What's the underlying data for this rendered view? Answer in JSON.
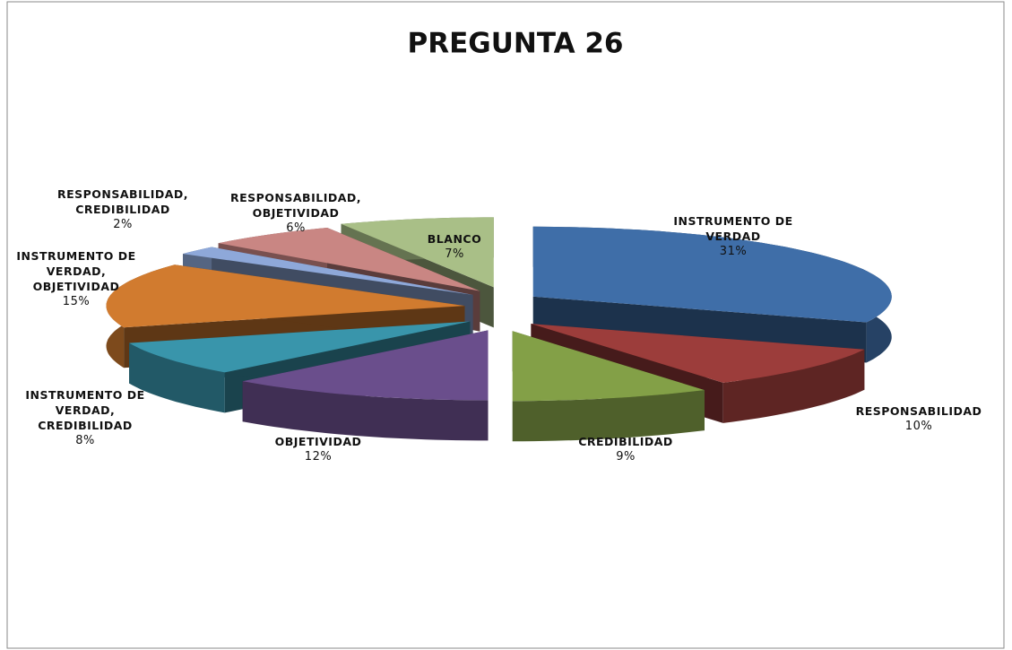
{
  "chart_data": {
    "type": "pie",
    "title": "PREGUNTA 26",
    "categories": [
      "INSTRUMENTO DE VERDAD",
      "RESPONSABILIDAD",
      "CREDIBILIDAD",
      "OBJETIVIDAD",
      "INSTRUMENTO DE VERDAD, CREDIBILIDAD",
      "INSTRUMENTO DE VERDAD, OBJETIVIDAD",
      "RESPONSABILIDAD, CREDIBILIDAD",
      "RESPONSABILIDAD, OBJETIVIDAD",
      "BLANCO"
    ],
    "values": [
      31,
      10,
      9,
      12,
      8,
      15,
      2,
      6,
      7
    ],
    "value_labels": [
      "31%",
      "10%",
      "9%",
      "12%",
      "8%",
      "15%",
      "2%",
      "6%",
      "7%"
    ],
    "colors": [
      "#3f6ea8",
      "#9c3d3b",
      "#83a047",
      "#6a4e8c",
      "#3995ab",
      "#d17b2f",
      "#8ea8d9",
      "#c98683",
      "#a9bf87"
    ],
    "exploded": true,
    "three_d": true
  }
}
